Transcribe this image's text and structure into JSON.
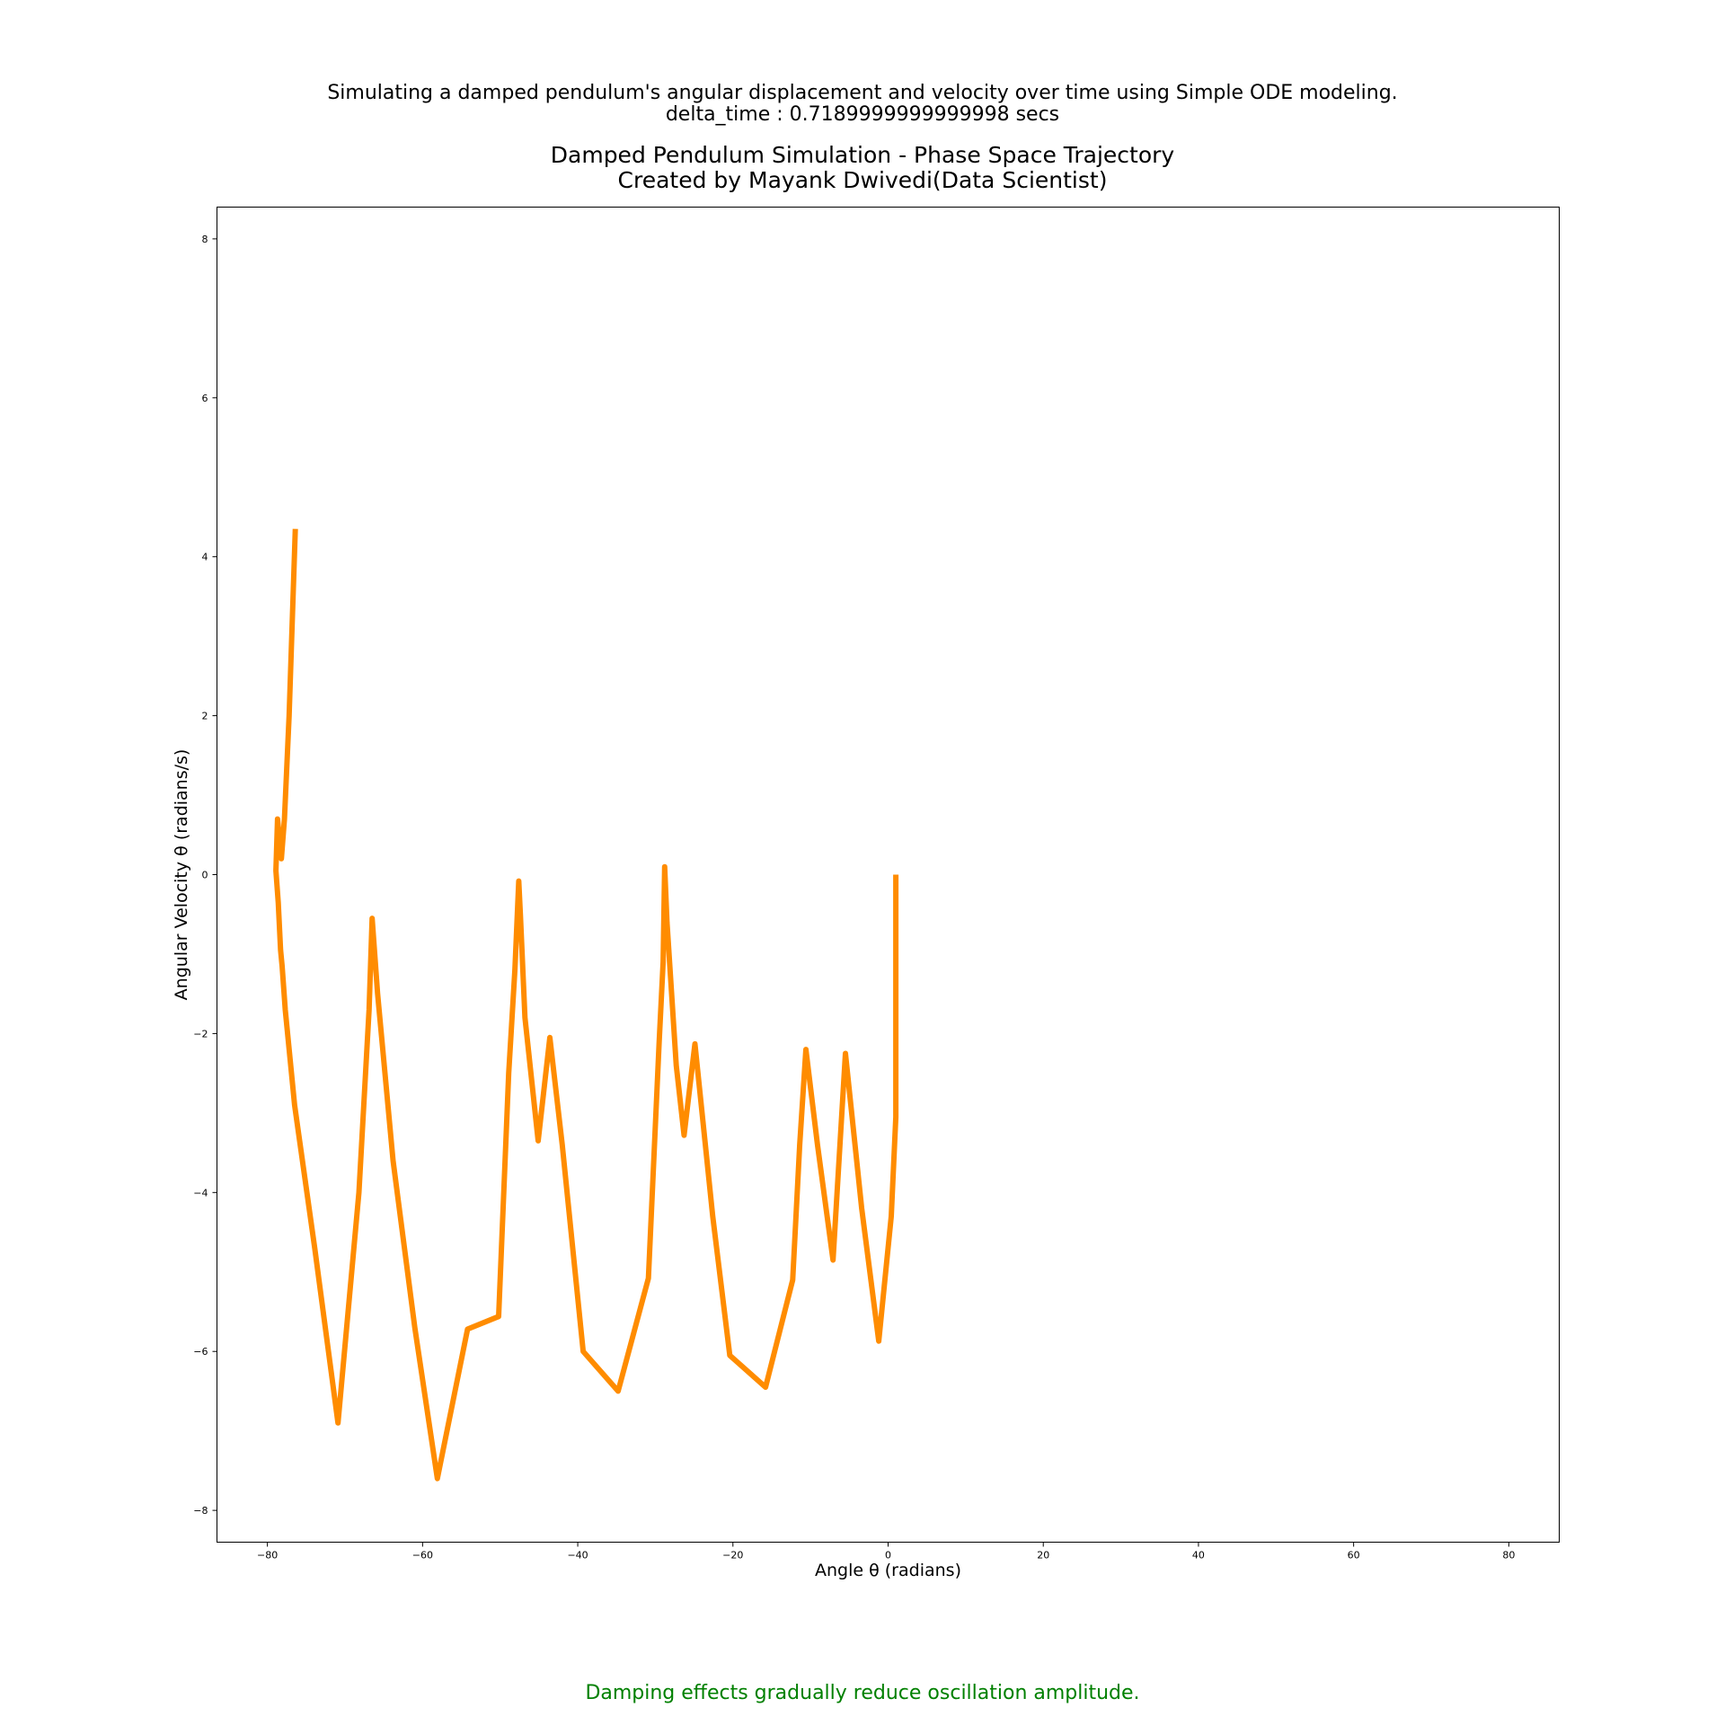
{
  "header": {
    "suptitle_line1": "Simulating a damped pendulum's angular displacement and velocity over time using Simple ODE modeling.",
    "suptitle_line2": "delta_time : 0.7189999999999998 secs"
  },
  "footer": {
    "caption": "Damping effects gradually reduce oscillation amplitude."
  },
  "colors": {
    "line": "#ff8c00",
    "caption": "#008000"
  },
  "chart_data": {
    "type": "line",
    "title_line1": "Damped Pendulum Simulation - Phase Space Trajectory",
    "title_line2": "Created by Mayank Dwivedi(Data Scientist)",
    "xlabel": "Angle θ (radians)",
    "ylabel": "Angular Velocity θ (radians/s)",
    "xlim": [
      -86.5,
      86.5
    ],
    "ylim": [
      -8.4,
      8.4
    ],
    "xticks": [
      -80,
      -60,
      -40,
      -20,
      0,
      20,
      40,
      60,
      80
    ],
    "xtick_labels": [
      "−80",
      "−60",
      "−40",
      "−20",
      "0",
      "20",
      "40",
      "60",
      "80"
    ],
    "yticks": [
      -8,
      -6,
      -4,
      -2,
      0,
      2,
      4,
      6,
      8
    ],
    "ytick_labels": [
      "−8",
      "−6",
      "−4",
      "−2",
      "0",
      "2",
      "4",
      "6",
      "8"
    ],
    "grid": false,
    "series": [
      {
        "color": "#ff8c00",
        "x": [
          -76.4,
          -77.2,
          -77.8,
          -78.2,
          -78.7,
          -78.9,
          -78.6,
          -78.3,
          -78.1,
          -77.7,
          -76.5,
          -73.9,
          -70.9,
          -68.2,
          -66.9,
          -66.5,
          -65.8,
          -63.8,
          -61.0,
          -58.1,
          -54.2,
          -50.2,
          -48.9,
          -48.1,
          -47.6,
          -47.4,
          -46.8,
          -45.1,
          -43.6,
          -42.0,
          -39.3,
          -34.8,
          -30.9,
          -29.5,
          -29.0,
          -28.8,
          -28.5,
          -27.3,
          -26.3,
          -24.9,
          -22.6,
          -20.4,
          -15.8,
          -12.3,
          -11.4,
          -10.6,
          -9.1,
          -7.1,
          -5.5,
          -3.4,
          -1.2,
          0.4,
          1.0,
          1.0,
          1.0
        ],
        "y": [
          4.35,
          2.0,
          0.7,
          0.2,
          0.7,
          0.05,
          -0.35,
          -0.95,
          -1.15,
          -1.7,
          -2.9,
          -4.7,
          -6.9,
          -4.0,
          -1.7,
          -0.55,
          -1.5,
          -3.6,
          -5.7,
          -7.6,
          -5.72,
          -5.56,
          -2.5,
          -1.2,
          -0.08,
          -0.5,
          -1.8,
          -3.35,
          -2.05,
          -3.4,
          -6.0,
          -6.5,
          -5.08,
          -2.1,
          -1.1,
          0.1,
          -0.6,
          -2.4,
          -3.28,
          -2.13,
          -4.3,
          -6.05,
          -6.45,
          -5.1,
          -3.4,
          -2.2,
          -3.4,
          -4.85,
          -2.25,
          -4.2,
          -5.87,
          -4.3,
          -3.05,
          -1.5,
          0.0
        ]
      }
    ]
  }
}
